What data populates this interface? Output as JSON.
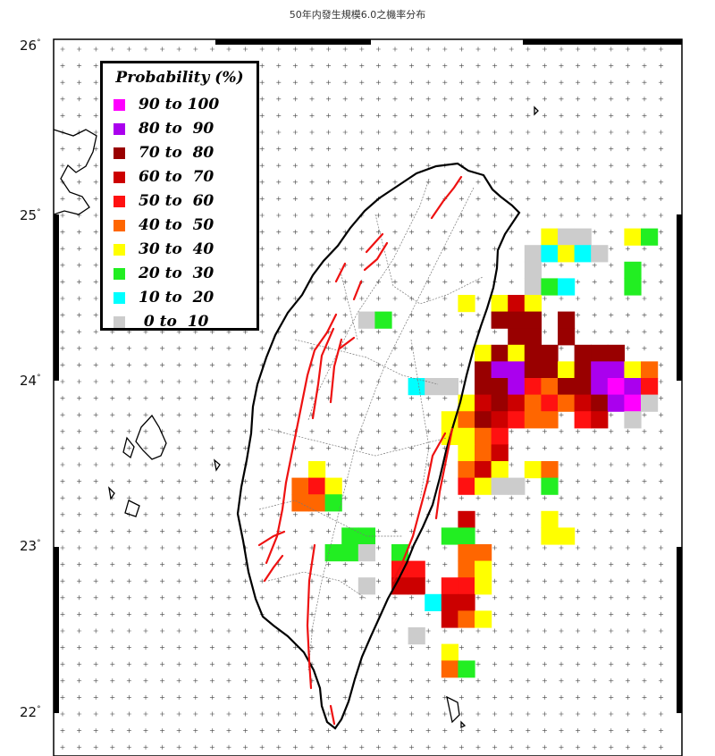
{
  "title": "50年内發生規模6.0之機率分布",
  "lat_labels": [
    {
      "text": "26",
      "deg": "°"
    },
    {
      "text": "25",
      "deg": "°"
    },
    {
      "text": "24",
      "deg": "°"
    },
    {
      "text": "23",
      "deg": "°"
    },
    {
      "text": "22",
      "deg": "°"
    }
  ],
  "legend": {
    "title": "Probability (%)",
    "items": [
      {
        "label": "90 to 100",
        "color": "#ff00ff"
      },
      {
        "label": "80 to  90",
        "color": "#aa00ee"
      },
      {
        "label": "70 to  80",
        "color": "#990000"
      },
      {
        "label": "60 to  70",
        "color": "#cc0000"
      },
      {
        "label": "50 to  60",
        "color": "#ff1111"
      },
      {
        "label": "40 to  50",
        "color": "#ff6600"
      },
      {
        "label": "30 to  40",
        "color": "#ffff00"
      },
      {
        "label": "20 to  30",
        "color": "#22ee22"
      },
      {
        "label": "10 to  20",
        "color": "#00ffff"
      },
      {
        "label": " 0 to  10",
        "color": "#cccccc"
      }
    ]
  },
  "map_data": {
    "type": "probability-grid",
    "lat_range": [
      21.8,
      26.05
    ],
    "cell_deg": 0.1,
    "colors": {
      "p90": "#ff00ff",
      "p80": "#aa00ee",
      "p70": "#990000",
      "p60": "#cc0000",
      "p50": "#ff1111",
      "p40": "#ff6600",
      "p30": "#ffff00",
      "p20": "#22ee22",
      "p10": "#00ffff",
      "p0": "#cccccc"
    },
    "cells": [
      {
        "col": 29,
        "row": 11,
        "c": "p30"
      },
      {
        "col": 30,
        "row": 11,
        "c": "p0"
      },
      {
        "col": 31,
        "row": 11,
        "c": "p0"
      },
      {
        "col": 34,
        "row": 11,
        "c": "p30"
      },
      {
        "col": 35,
        "row": 11,
        "c": "p20"
      },
      {
        "col": 28,
        "row": 12,
        "c": "p0"
      },
      {
        "col": 29,
        "row": 12,
        "c": "p10"
      },
      {
        "col": 30,
        "row": 12,
        "c": "p30"
      },
      {
        "col": 31,
        "row": 12,
        "c": "p10"
      },
      {
        "col": 32,
        "row": 12,
        "c": "p0"
      },
      {
        "col": 28,
        "row": 13,
        "c": "p0"
      },
      {
        "col": 34,
        "row": 13,
        "c": "p20"
      },
      {
        "col": 28,
        "row": 14,
        "c": "p0"
      },
      {
        "col": 29,
        "row": 14,
        "c": "p20"
      },
      {
        "col": 30,
        "row": 14,
        "c": "p10"
      },
      {
        "col": 34,
        "row": 14,
        "c": "p20"
      },
      {
        "col": 24,
        "row": 15,
        "c": "p30"
      },
      {
        "col": 26,
        "row": 15,
        "c": "p30"
      },
      {
        "col": 27,
        "row": 15,
        "c": "p60"
      },
      {
        "col": 28,
        "row": 15,
        "c": "p30"
      },
      {
        "col": 18,
        "row": 16,
        "c": "p0"
      },
      {
        "col": 19,
        "row": 16,
        "c": "p20"
      },
      {
        "col": 26,
        "row": 16,
        "c": "p70"
      },
      {
        "col": 27,
        "row": 16,
        "c": "p70"
      },
      {
        "col": 28,
        "row": 16,
        "c": "p70"
      },
      {
        "col": 30,
        "row": 16,
        "c": "p70"
      },
      {
        "col": 27,
        "row": 17,
        "c": "p70"
      },
      {
        "col": 28,
        "row": 17,
        "c": "p70"
      },
      {
        "col": 30,
        "row": 17,
        "c": "p70"
      },
      {
        "col": 25,
        "row": 18,
        "c": "p30"
      },
      {
        "col": 26,
        "row": 18,
        "c": "p70"
      },
      {
        "col": 27,
        "row": 18,
        "c": "p30"
      },
      {
        "col": 28,
        "row": 18,
        "c": "p70"
      },
      {
        "col": 29,
        "row": 18,
        "c": "p70"
      },
      {
        "col": 31,
        "row": 18,
        "c": "p70"
      },
      {
        "col": 32,
        "row": 18,
        "c": "p70"
      },
      {
        "col": 33,
        "row": 18,
        "c": "p70"
      },
      {
        "col": 25,
        "row": 19,
        "c": "p70"
      },
      {
        "col": 26,
        "row": 19,
        "c": "p80"
      },
      {
        "col": 27,
        "row": 19,
        "c": "p80"
      },
      {
        "col": 28,
        "row": 19,
        "c": "p70"
      },
      {
        "col": 29,
        "row": 19,
        "c": "p70"
      },
      {
        "col": 30,
        "row": 19,
        "c": "p30"
      },
      {
        "col": 31,
        "row": 19,
        "c": "p70"
      },
      {
        "col": 32,
        "row": 19,
        "c": "p80"
      },
      {
        "col": 33,
        "row": 19,
        "c": "p80"
      },
      {
        "col": 34,
        "row": 19,
        "c": "p30"
      },
      {
        "col": 35,
        "row": 19,
        "c": "p40"
      },
      {
        "col": 21,
        "row": 20,
        "c": "p10"
      },
      {
        "col": 22,
        "row": 20,
        "c": "p0"
      },
      {
        "col": 23,
        "row": 20,
        "c": "p0"
      },
      {
        "col": 25,
        "row": 20,
        "c": "p70"
      },
      {
        "col": 26,
        "row": 20,
        "c": "p70"
      },
      {
        "col": 27,
        "row": 20,
        "c": "p80"
      },
      {
        "col": 28,
        "row": 20,
        "c": "p50"
      },
      {
        "col": 29,
        "row": 20,
        "c": "p40"
      },
      {
        "col": 30,
        "row": 20,
        "c": "p70"
      },
      {
        "col": 31,
        "row": 20,
        "c": "p70"
      },
      {
        "col": 32,
        "row": 20,
        "c": "p80"
      },
      {
        "col": 33,
        "row": 20,
        "c": "p90"
      },
      {
        "col": 34,
        "row": 20,
        "c": "p80"
      },
      {
        "col": 35,
        "row": 20,
        "c": "p50"
      },
      {
        "col": 24,
        "row": 21,
        "c": "p30"
      },
      {
        "col": 25,
        "row": 21,
        "c": "p60"
      },
      {
        "col": 26,
        "row": 21,
        "c": "p70"
      },
      {
        "col": 27,
        "row": 21,
        "c": "p60"
      },
      {
        "col": 28,
        "row": 21,
        "c": "p40"
      },
      {
        "col": 29,
        "row": 21,
        "c": "p50"
      },
      {
        "col": 30,
        "row": 21,
        "c": "p40"
      },
      {
        "col": 31,
        "row": 21,
        "c": "p60"
      },
      {
        "col": 32,
        "row": 21,
        "c": "p70"
      },
      {
        "col": 33,
        "row": 21,
        "c": "p80"
      },
      {
        "col": 34,
        "row": 21,
        "c": "p90"
      },
      {
        "col": 35,
        "row": 21,
        "c": "p0"
      },
      {
        "col": 23,
        "row": 22,
        "c": "p30"
      },
      {
        "col": 24,
        "row": 22,
        "c": "p40"
      },
      {
        "col": 25,
        "row": 22,
        "c": "p70"
      },
      {
        "col": 26,
        "row": 22,
        "c": "p60"
      },
      {
        "col": 27,
        "row": 22,
        "c": "p50"
      },
      {
        "col": 28,
        "row": 22,
        "c": "p40"
      },
      {
        "col": 29,
        "row": 22,
        "c": "p40"
      },
      {
        "col": 31,
        "row": 22,
        "c": "p50"
      },
      {
        "col": 32,
        "row": 22,
        "c": "p60"
      },
      {
        "col": 34,
        "row": 22,
        "c": "p0"
      },
      {
        "col": 23,
        "row": 23,
        "c": "p30"
      },
      {
        "col": 24,
        "row": 23,
        "c": "p30"
      },
      {
        "col": 25,
        "row": 23,
        "c": "p40"
      },
      {
        "col": 26,
        "row": 23,
        "c": "p50"
      },
      {
        "col": 24,
        "row": 24,
        "c": "p30"
      },
      {
        "col": 25,
        "row": 24,
        "c": "p40"
      },
      {
        "col": 26,
        "row": 24,
        "c": "p60"
      },
      {
        "col": 15,
        "row": 25,
        "c": "p30"
      },
      {
        "col": 24,
        "row": 25,
        "c": "p40"
      },
      {
        "col": 25,
        "row": 25,
        "c": "p60"
      },
      {
        "col": 26,
        "row": 25,
        "c": "p30"
      },
      {
        "col": 28,
        "row": 25,
        "c": "p30"
      },
      {
        "col": 29,
        "row": 25,
        "c": "p40"
      },
      {
        "col": 14,
        "row": 26,
        "c": "p40"
      },
      {
        "col": 15,
        "row": 26,
        "c": "p50"
      },
      {
        "col": 16,
        "row": 26,
        "c": "p30"
      },
      {
        "col": 24,
        "row": 26,
        "c": "p50"
      },
      {
        "col": 25,
        "row": 26,
        "c": "p30"
      },
      {
        "col": 26,
        "row": 26,
        "c": "p0"
      },
      {
        "col": 27,
        "row": 26,
        "c": "p0"
      },
      {
        "col": 29,
        "row": 26,
        "c": "p20"
      },
      {
        "col": 14,
        "row": 27,
        "c": "p40"
      },
      {
        "col": 15,
        "row": 27,
        "c": "p40"
      },
      {
        "col": 16,
        "row": 27,
        "c": "p20"
      },
      {
        "col": 24,
        "row": 28,
        "c": "p60"
      },
      {
        "col": 29,
        "row": 28,
        "c": "p30"
      },
      {
        "col": 17,
        "row": 29,
        "c": "p20"
      },
      {
        "col": 18,
        "row": 29,
        "c": "p20"
      },
      {
        "col": 23,
        "row": 29,
        "c": "p20"
      },
      {
        "col": 24,
        "row": 29,
        "c": "p20"
      },
      {
        "col": 29,
        "row": 29,
        "c": "p30"
      },
      {
        "col": 30,
        "row": 29,
        "c": "p30"
      },
      {
        "col": 16,
        "row": 30,
        "c": "p20"
      },
      {
        "col": 17,
        "row": 30,
        "c": "p20"
      },
      {
        "col": 18,
        "row": 30,
        "c": "p0"
      },
      {
        "col": 20,
        "row": 30,
        "c": "p20"
      },
      {
        "col": 24,
        "row": 30,
        "c": "p40"
      },
      {
        "col": 25,
        "row": 30,
        "c": "p40"
      },
      {
        "col": 20,
        "row": 31,
        "c": "p50"
      },
      {
        "col": 21,
        "row": 31,
        "c": "p50"
      },
      {
        "col": 24,
        "row": 31,
        "c": "p40"
      },
      {
        "col": 25,
        "row": 31,
        "c": "p30"
      },
      {
        "col": 18,
        "row": 32,
        "c": "p0"
      },
      {
        "col": 20,
        "row": 32,
        "c": "p60"
      },
      {
        "col": 21,
        "row": 32,
        "c": "p60"
      },
      {
        "col": 23,
        "row": 32,
        "c": "p50"
      },
      {
        "col": 24,
        "row": 32,
        "c": "p50"
      },
      {
        "col": 25,
        "row": 32,
        "c": "p30"
      },
      {
        "col": 22,
        "row": 33,
        "c": "p10"
      },
      {
        "col": 23,
        "row": 33,
        "c": "p60"
      },
      {
        "col": 24,
        "row": 33,
        "c": "p60"
      },
      {
        "col": 23,
        "row": 34,
        "c": "p60"
      },
      {
        "col": 24,
        "row": 34,
        "c": "p40"
      },
      {
        "col": 25,
        "row": 34,
        "c": "p30"
      },
      {
        "col": 21,
        "row": 35,
        "c": "p0"
      },
      {
        "col": 23,
        "row": 36,
        "c": "p30"
      },
      {
        "col": 23,
        "row": 37,
        "c": "p40"
      },
      {
        "col": 24,
        "row": 37,
        "c": "p20"
      }
    ]
  }
}
